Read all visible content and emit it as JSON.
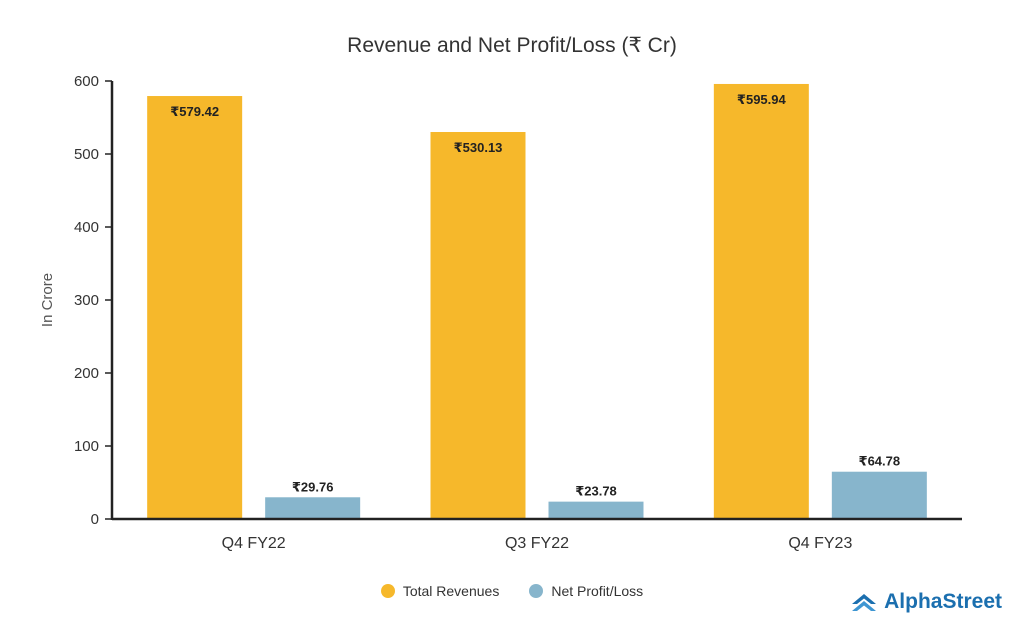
{
  "chart_data": {
    "type": "bar",
    "title": "Revenue and Net Profit/Loss (₹ Cr)",
    "xlabel": "",
    "ylabel": "In Crore",
    "ylim": [
      0,
      600
    ],
    "yticks": [
      0,
      100,
      200,
      300,
      400,
      500,
      600
    ],
    "categories": [
      "Q4 FY22",
      "Q3 FY22",
      "Q4 FY23"
    ],
    "series": [
      {
        "name": "Total Revenues",
        "values": [
          579.42,
          530.13,
          595.94
        ],
        "labels": [
          "₹579.42",
          "₹530.13",
          "₹595.94"
        ],
        "color": "#F6B82B"
      },
      {
        "name": "Net Profit/Loss",
        "values": [
          29.76,
          23.78,
          64.78
        ],
        "labels": [
          "₹29.76",
          "₹23.78",
          "₹64.78"
        ],
        "color": "#87B5CC"
      }
    ],
    "legend_position": "bottom-center"
  },
  "brand": {
    "name": "AlphaStreet",
    "color": "#1B6FAF"
  }
}
